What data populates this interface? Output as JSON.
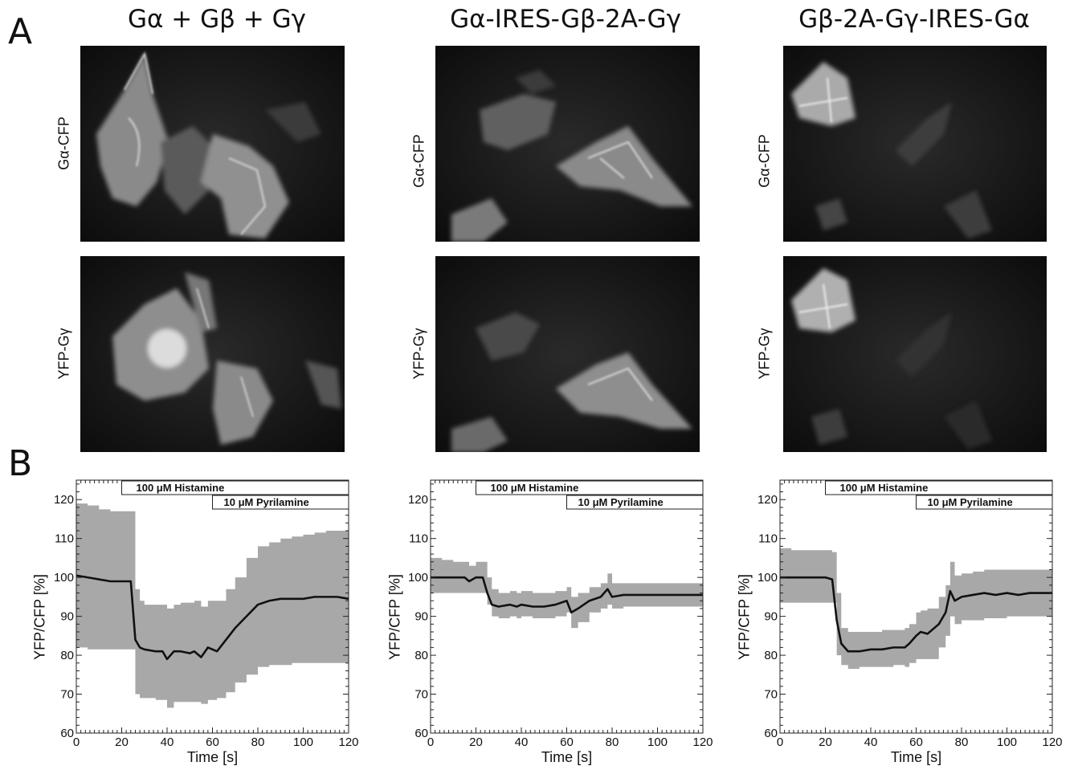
{
  "panel_labels": {
    "a": "A",
    "b": "B"
  },
  "columns": [
    {
      "title": "Gα + Gβ + Gγ",
      "row_labels": [
        "Gα-CFP",
        "YFP-Gγ"
      ]
    },
    {
      "title": "Gα-IRES-Gβ-2A-Gγ",
      "row_labels": [
        "Gα-CFP",
        "YFP-Gγ"
      ]
    },
    {
      "title": "Gβ-2A-Gγ-IRES-Gα",
      "row_labels": [
        "Gα-CFP",
        "YFP-Gγ"
      ]
    }
  ],
  "chart_data": [
    {
      "type": "line",
      "xlabel": "Time [s]",
      "ylabel": "YFP/CFP [%]",
      "xlim": [
        0,
        120
      ],
      "ylim": [
        60,
        125
      ],
      "xticks": [
        "0",
        "20",
        "40",
        "60",
        "80",
        "100",
        "120"
      ],
      "yticks": [
        "60",
        "70",
        "80",
        "90",
        "100",
        "110",
        "120"
      ],
      "bars": [
        {
          "label": "100 μM Histamine",
          "start": 20,
          "end": 120
        },
        {
          "label": "10 μM Pyrilamine",
          "start": 60,
          "end": 120
        }
      ],
      "series": [
        {
          "x": [
            0,
            5,
            10,
            15,
            20,
            24,
            26,
            28,
            30,
            35,
            38,
            40,
            43,
            46,
            50,
            52,
            55,
            58,
            62,
            66,
            70,
            75,
            80,
            85,
            90,
            95,
            100,
            105,
            110,
            115,
            120
          ],
          "y": [
            100.5,
            100,
            99.5,
            99,
            99,
            99,
            84,
            82,
            81.5,
            81,
            81,
            79,
            81,
            81,
            80.5,
            81,
            79.5,
            82,
            81,
            84,
            87,
            90,
            93,
            94,
            94.5,
            94.5,
            94.5,
            95,
            95,
            95,
            94.5
          ],
          "lower": [
            82,
            81.5,
            81.5,
            81.5,
            81.5,
            81.5,
            70,
            69,
            69,
            68.5,
            68.5,
            66.5,
            68,
            68,
            68,
            68,
            67.5,
            68.5,
            69,
            70.5,
            73,
            75,
            77,
            77.5,
            77.5,
            78,
            78,
            78,
            78,
            78,
            78
          ],
          "upper": [
            119,
            118.5,
            117.5,
            117,
            117,
            117,
            97,
            94,
            93,
            93,
            93,
            92,
            93,
            93.5,
            93.5,
            94,
            92.5,
            94,
            94,
            97,
            100,
            105,
            108,
            109,
            110,
            110.5,
            111,
            111.5,
            112,
            112,
            111.5
          ]
        }
      ]
    },
    {
      "type": "line",
      "xlabel": "Time [s]",
      "ylabel": "YFP/CFP [%]",
      "xlim": [
        0,
        120
      ],
      "ylim": [
        60,
        125
      ],
      "xticks": [
        "0",
        "20",
        "40",
        "60",
        "80",
        "100",
        "120"
      ],
      "yticks": [
        "60",
        "70",
        "80",
        "90",
        "100",
        "110",
        "120"
      ],
      "bars": [
        {
          "label": "100 μM Histamine",
          "start": 20,
          "end": 120
        },
        {
          "label": "10 μM Pyrilamine",
          "start": 60,
          "end": 120
        }
      ],
      "series": [
        {
          "x": [
            0,
            5,
            10,
            15,
            17,
            20,
            23,
            25,
            27,
            30,
            35,
            38,
            40,
            45,
            50,
            55,
            60,
            62,
            65,
            70,
            75,
            78,
            80,
            85,
            90,
            95,
            100,
            105,
            110,
            115,
            120
          ],
          "y": [
            100,
            100,
            100,
            100,
            99,
            100,
            100,
            96,
            93,
            92.5,
            93,
            92.5,
            93,
            92.5,
            92.5,
            93,
            94,
            91,
            92,
            94,
            95,
            97,
            95,
            95.5,
            95.5,
            95.5,
            95.5,
            95.5,
            95.5,
            95.5,
            95.5
          ],
          "lower": [
            96,
            96,
            96,
            96,
            96,
            96,
            96,
            93,
            90,
            89.5,
            90,
            89.5,
            90,
            89.5,
            89.5,
            90,
            91,
            87,
            88.5,
            91,
            92,
            93,
            92,
            92.5,
            92.5,
            92.5,
            92.5,
            92.5,
            92.5,
            92.5,
            92.5
          ],
          "upper": [
            105,
            104.5,
            104,
            104,
            103,
            104,
            104,
            100,
            97,
            96,
            96.5,
            96,
            96.5,
            96,
            96,
            96.5,
            97.5,
            95,
            96,
            97.5,
            98.5,
            101,
            98.5,
            98.5,
            98.5,
            98.5,
            98.5,
            98.5,
            98.5,
            98.5,
            98.5
          ]
        }
      ]
    },
    {
      "type": "line",
      "xlabel": "Time [s]",
      "ylabel": "YFP/CFP [%]",
      "xlim": [
        0,
        120
      ],
      "ylim": [
        60,
        125
      ],
      "xticks": [
        "0",
        "20",
        "40",
        "60",
        "80",
        "100",
        "120"
      ],
      "yticks": [
        "60",
        "70",
        "80",
        "90",
        "100",
        "110",
        "120"
      ],
      "bars": [
        {
          "label": "100 μM Histamine",
          "start": 20,
          "end": 120
        },
        {
          "label": "10 μM Pyrilamine",
          "start": 60,
          "end": 120
        }
      ],
      "series": [
        {
          "x": [
            0,
            5,
            10,
            15,
            20,
            23,
            25,
            27,
            30,
            35,
            40,
            45,
            50,
            55,
            57,
            60,
            62,
            65,
            70,
            73,
            75,
            77,
            80,
            85,
            90,
            95,
            100,
            105,
            110,
            115,
            120
          ],
          "y": [
            100,
            100,
            100,
            100,
            100,
            99.5,
            89,
            83,
            81,
            81,
            81.5,
            81.5,
            82,
            82,
            83,
            85,
            86,
            85.5,
            88,
            91,
            96.5,
            94,
            95,
            95.5,
            96,
            95.5,
            96,
            95.5,
            96,
            96,
            96
          ],
          "lower": [
            93.5,
            93.5,
            93.5,
            93.5,
            93.5,
            93.5,
            80,
            77.5,
            76.5,
            77,
            77,
            77,
            77.5,
            77,
            78,
            79,
            79,
            79,
            82,
            85,
            90,
            88,
            89,
            89,
            89.5,
            89.5,
            90,
            90,
            90,
            90,
            90
          ],
          "upper": [
            107.5,
            107,
            107,
            107,
            107,
            106.5,
            96,
            87,
            86,
            86,
            86,
            86.5,
            86.5,
            87,
            88,
            91,
            91.5,
            92,
            95,
            98,
            104,
            100.5,
            101,
            101.5,
            102,
            102,
            102,
            102,
            102,
            102,
            102
          ]
        }
      ]
    }
  ]
}
